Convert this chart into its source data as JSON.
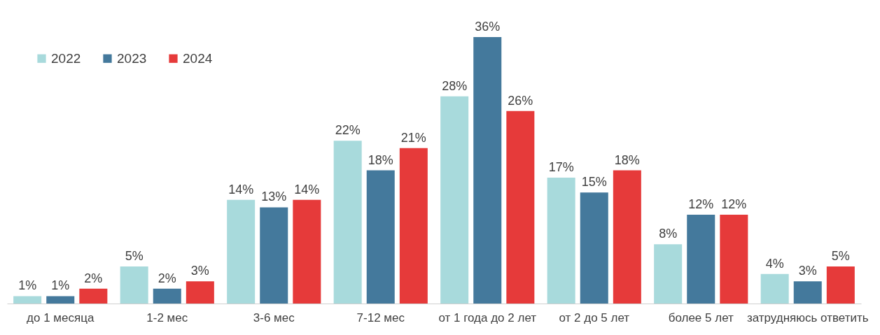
{
  "chart_data": {
    "type": "bar",
    "categories": [
      "до 1 месяца",
      "1-2 мес",
      "3-6 мес",
      "7-12 мес",
      "от 1 года до 2 лет",
      "от 2 до 5 лет",
      "более 5 лет",
      "затрудняюсь ответить"
    ],
    "series": [
      {
        "name": "2022",
        "color": "#a8dadc",
        "values": [
          1,
          5,
          14,
          22,
          28,
          17,
          8,
          4
        ],
        "value_labels": [
          "1%",
          "5%",
          "14%",
          "22%",
          "28%",
          "17%",
          "8%",
          "4%"
        ]
      },
      {
        "name": "2023",
        "color": "#44799c",
        "values": [
          1,
          2,
          13,
          18,
          36,
          15,
          12,
          3
        ],
        "value_labels": [
          "1%",
          "2%",
          "13%",
          "18%",
          "36%",
          "15%",
          "12%",
          "3%"
        ]
      },
      {
        "name": "2024",
        "color": "#e63a3a",
        "values": [
          2,
          3,
          14,
          21,
          26,
          18,
          12,
          5
        ],
        "value_labels": [
          "2%",
          "3%",
          "14%",
          "21%",
          "26%",
          "18%",
          "12%",
          "5%"
        ]
      }
    ],
    "legend": "top left",
    "grid": false
  }
}
